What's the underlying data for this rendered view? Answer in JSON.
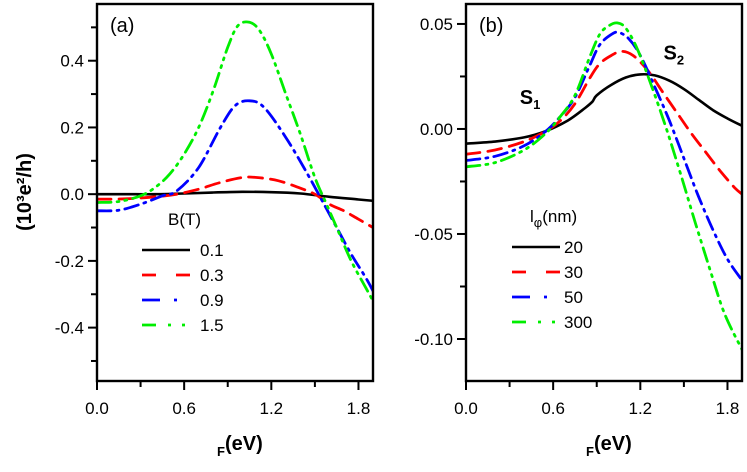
{
  "colors": {
    "black": "#000000",
    "red": "#ff0000",
    "blue": "#0000ff",
    "green": "#00ee00"
  },
  "chart_data": [
    {
      "type": "line",
      "panel_label": "(a)",
      "title": "",
      "xlabel": "F(eV)",
      "xlabel_parts": {
        "sub": "F",
        "main": "(eV)"
      },
      "ylabel": "(10³e²/h)",
      "xlim": [
        0.0,
        1.9
      ],
      "ylim": [
        -0.56,
        0.57
      ],
      "xticks": [
        0.0,
        0.6,
        1.2,
        1.8
      ],
      "xtick_labels": [
        "0.0",
        "0.6",
        "1.2",
        "1.8"
      ],
      "x_minor_ticks": [
        0.3,
        0.9,
        1.5
      ],
      "yticks": [
        0.4,
        0.2,
        0.0,
        -0.2,
        -0.4
      ],
      "ytick_labels": [
        "0.4",
        "0.2",
        "0.0",
        "-0.2",
        "-0.4"
      ],
      "y_minor_ticks": [
        0.5,
        0.3,
        0.1,
        -0.1,
        -0.3,
        -0.5
      ],
      "grid": false,
      "legend": {
        "title": "B(T)",
        "position": "lower-left"
      },
      "series": [
        {
          "name": "0.1",
          "color": "#000000",
          "style": "solid",
          "x": [
            0.0,
            0.2,
            0.4,
            0.6,
            0.8,
            1.0,
            1.2,
            1.4,
            1.6,
            1.8,
            1.9
          ],
          "y": [
            0.0,
            0.0,
            0.0,
            0.002,
            0.005,
            0.007,
            0.006,
            0.002,
            -0.008,
            -0.016,
            -0.02
          ]
        },
        {
          "name": "0.3",
          "color": "#ff0000",
          "style": "dash",
          "x": [
            0.0,
            0.2,
            0.4,
            0.55,
            0.7,
            0.85,
            1.0,
            1.1,
            1.25,
            1.4,
            1.5,
            1.6,
            1.7,
            1.8,
            1.9
          ],
          "y": [
            -0.015,
            -0.014,
            -0.008,
            0.0,
            0.015,
            0.035,
            0.05,
            0.05,
            0.04,
            0.018,
            0.0,
            -0.03,
            -0.05,
            -0.075,
            -0.1
          ]
        },
        {
          "name": "0.9",
          "color": "#0000ff",
          "style": "dashdot",
          "x": [
            0.0,
            0.15,
            0.3,
            0.45,
            0.55,
            0.7,
            0.85,
            0.95,
            1.05,
            1.15,
            1.3,
            1.45,
            1.55,
            1.65,
            1.75,
            1.85,
            1.9
          ],
          "y": [
            -0.05,
            -0.048,
            -0.03,
            -0.005,
            0.01,
            0.08,
            0.2,
            0.265,
            0.28,
            0.26,
            0.17,
            0.06,
            -0.02,
            -0.1,
            -0.18,
            -0.25,
            -0.29
          ]
        },
        {
          "name": "1.5",
          "color": "#00ee00",
          "style": "dashdotdot",
          "x": [
            0.0,
            0.15,
            0.3,
            0.4,
            0.5,
            0.6,
            0.7,
            0.8,
            0.9,
            0.97,
            1.05,
            1.12,
            1.2,
            1.3,
            1.4,
            1.5,
            1.58,
            1.65,
            1.75,
            1.85,
            1.9
          ],
          "y": [
            -0.025,
            -0.022,
            -0.005,
            0.02,
            0.06,
            0.12,
            0.2,
            0.31,
            0.44,
            0.505,
            0.515,
            0.49,
            0.42,
            0.3,
            0.18,
            0.05,
            -0.03,
            -0.1,
            -0.2,
            -0.28,
            -0.32
          ]
        }
      ]
    },
    {
      "type": "line",
      "panel_label": "(b)",
      "title": "",
      "xlabel": "F(eV)",
      "xlabel_parts": {
        "sub": "F",
        "main": "(eV)"
      },
      "ylabel": "",
      "xlim": [
        0.0,
        1.9
      ],
      "ylim": [
        -0.12,
        0.0595
      ],
      "xticks": [
        0.0,
        0.6,
        1.2,
        1.8
      ],
      "xtick_labels": [
        "0.0",
        "0.6",
        "1.2",
        "1.8"
      ],
      "x_minor_ticks": [
        0.3,
        0.9,
        1.5
      ],
      "yticks": [
        0.05,
        0.0,
        -0.05,
        -0.1
      ],
      "ytick_labels": [
        "0.05",
        "0.00",
        "-0.05",
        "-0.10"
      ],
      "y_minor_ticks": [
        0.025,
        -0.025,
        -0.075
      ],
      "grid": false,
      "legend": {
        "title": "lφ(nm)",
        "title_parts": {
          "main": "l",
          "sub": "φ",
          "rest": "(nm)"
        },
        "position": "lower-left"
      },
      "annotations": [
        {
          "text": "S",
          "sub": "1",
          "x": 0.37,
          "y": 0.012
        },
        {
          "text": "S",
          "sub": "2",
          "x": 1.36,
          "y": 0.033
        }
      ],
      "series": [
        {
          "name": "20",
          "color": "#000000",
          "style": "solid",
          "x": [
            0.0,
            0.2,
            0.4,
            0.55,
            0.7,
            0.82,
            0.87,
            0.9,
            1.0,
            1.1,
            1.2,
            1.3,
            1.4,
            1.5,
            1.6,
            1.7,
            1.8,
            1.9
          ],
          "y": [
            -0.007,
            -0.006,
            -0.004,
            -0.001,
            0.004,
            0.01,
            0.013,
            0.016,
            0.021,
            0.0245,
            0.026,
            0.0255,
            0.023,
            0.019,
            0.014,
            0.009,
            0.005,
            0.0015
          ]
        },
        {
          "name": "30",
          "color": "#ff0000",
          "style": "dash",
          "x": [
            0.0,
            0.2,
            0.4,
            0.55,
            0.65,
            0.75,
            0.85,
            0.92,
            1.0,
            1.07,
            1.15,
            1.25,
            1.35,
            1.45,
            1.55,
            1.65,
            1.75,
            1.85,
            1.9
          ],
          "y": [
            -0.012,
            -0.01,
            -0.006,
            -0.001,
            0.004,
            0.012,
            0.024,
            0.031,
            0.035,
            0.037,
            0.035,
            0.028,
            0.018,
            0.008,
            -0.002,
            -0.011,
            -0.02,
            -0.028,
            -0.031
          ]
        },
        {
          "name": "50",
          "color": "#0000ff",
          "style": "dashdot",
          "x": [
            0.0,
            0.2,
            0.4,
            0.55,
            0.65,
            0.75,
            0.85,
            0.92,
            1.0,
            1.05,
            1.12,
            1.2,
            1.3,
            1.4,
            1.5,
            1.6,
            1.7,
            1.8,
            1.9
          ],
          "y": [
            -0.015,
            -0.013,
            -0.008,
            -0.001,
            0.006,
            0.015,
            0.03,
            0.04,
            0.045,
            0.046,
            0.043,
            0.035,
            0.02,
            0.004,
            -0.014,
            -0.032,
            -0.048,
            -0.062,
            -0.072
          ]
        },
        {
          "name": "300",
          "color": "#00ee00",
          "style": "dashdotdot",
          "x": [
            0.0,
            0.2,
            0.4,
            0.55,
            0.65,
            0.75,
            0.85,
            0.92,
            0.98,
            1.04,
            1.1,
            1.18,
            1.28,
            1.38,
            1.48,
            1.58,
            1.68,
            1.78,
            1.9
          ],
          "y": [
            -0.018,
            -0.016,
            -0.01,
            -0.002,
            0.006,
            0.016,
            0.034,
            0.045,
            0.049,
            0.0505,
            0.048,
            0.038,
            0.02,
            0.0,
            -0.022,
            -0.045,
            -0.067,
            -0.088,
            -0.105
          ]
        }
      ]
    }
  ]
}
